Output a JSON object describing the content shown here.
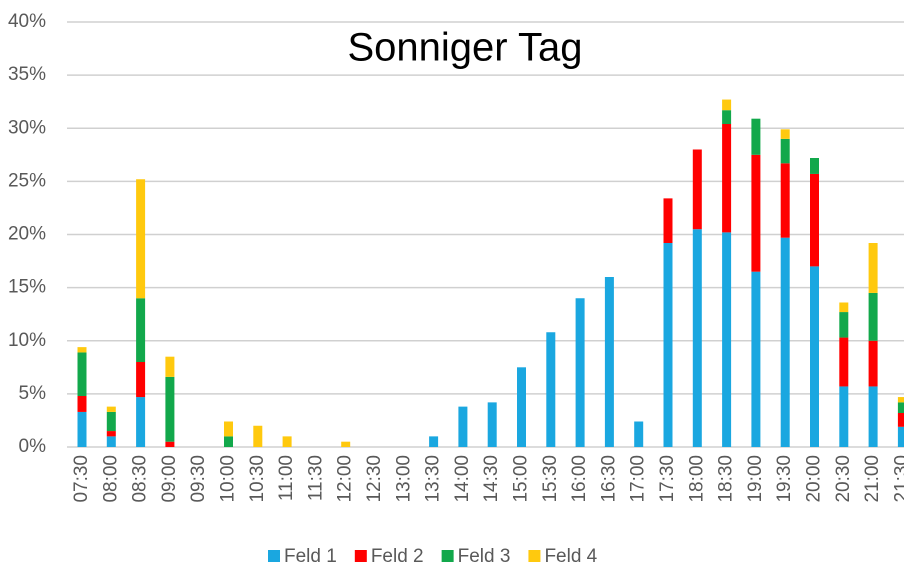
{
  "chart_data": {
    "type": "stacked_bar",
    "title": "Sonniger Tag",
    "categories": [
      "07:30",
      "08:00",
      "08:30",
      "09:00",
      "09:30",
      "10:00",
      "10:30",
      "11:00",
      "11:30",
      "12:00",
      "12:30",
      "13:00",
      "13:30",
      "14:00",
      "14:30",
      "15:00",
      "15:30",
      "16:00",
      "16:30",
      "17:00",
      "17:30",
      "18:00",
      "18:30",
      "19:00",
      "19:30",
      "20:00",
      "20:30",
      "21:00",
      "21:30"
    ],
    "series": [
      {
        "name": "Feld 1",
        "color": "#1aa7e0",
        "values": [
          3.3,
          1.0,
          4.7,
          0,
          0,
          0,
          0,
          0,
          0,
          0,
          0,
          0,
          1.0,
          3.8,
          4.2,
          7.5,
          10.8,
          14.0,
          16.0,
          2.4,
          19.2,
          20.5,
          20.2,
          16.5,
          19.7,
          17.0,
          5.7,
          5.7,
          1.9
        ]
      },
      {
        "name": "Feld 2",
        "color": "#ff0000",
        "values": [
          1.5,
          0.5,
          3.3,
          0.5,
          0,
          0,
          0,
          0,
          0,
          0,
          0,
          0,
          0,
          0,
          0,
          0,
          0,
          0,
          0,
          0,
          4.2,
          7.5,
          10.2,
          11.0,
          7.0,
          8.7,
          4.6,
          4.3,
          1.3
        ]
      },
      {
        "name": "Feld 3",
        "color": "#12a84b",
        "values": [
          4.1,
          1.8,
          6.0,
          6.1,
          0,
          1.0,
          0,
          0,
          0,
          0,
          0,
          0,
          0,
          0,
          0,
          0,
          0,
          0,
          0,
          0,
          0,
          0,
          1.3,
          3.4,
          2.3,
          1.5,
          2.4,
          4.5,
          1.0
        ]
      },
      {
        "name": "Feld 4",
        "color": "#ffc90e",
        "values": [
          0.5,
          0.5,
          11.2,
          1.9,
          0,
          1.4,
          2.0,
          1.0,
          0,
          0.5,
          0,
          0,
          0,
          0,
          0,
          0,
          0,
          0,
          0,
          0,
          0,
          0,
          1.0,
          0,
          0.9,
          0,
          0.9,
          4.7,
          0.5
        ]
      }
    ],
    "ylim": [
      0,
      40
    ],
    "yticks": [
      {
        "value": 0,
        "label": "0%"
      },
      {
        "value": 5,
        "label": "5%"
      },
      {
        "value": 10,
        "label": "10%"
      },
      {
        "value": 15,
        "label": "15%"
      },
      {
        "value": 20,
        "label": "20%"
      },
      {
        "value": 25,
        "label": "25%"
      },
      {
        "value": 30,
        "label": "30%"
      },
      {
        "value": 35,
        "label": "35%"
      },
      {
        "value": 40,
        "label": "40%"
      }
    ],
    "grid": true,
    "legend": "bottom"
  }
}
